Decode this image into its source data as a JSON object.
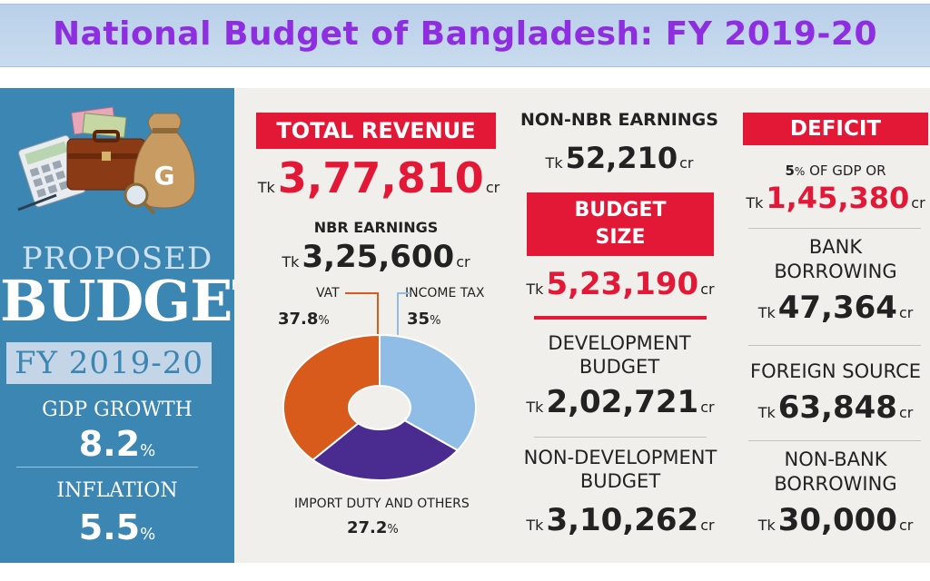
{
  "header": {
    "title": "National Budget of Bangladesh: FY 2019-20"
  },
  "left_panel": {
    "proposed": "PROPOSED",
    "budget": "BUDGET",
    "fy": "FY 2019-20",
    "gdp_growth_label": "GDP GROWTH",
    "gdp_growth_value": "8.2",
    "gdp_growth_unit": "%",
    "inflation_label": "INFLATION",
    "inflation_value": "5.5",
    "inflation_unit": "%"
  },
  "currency_prefix": "Tk",
  "currency_suffix": "cr",
  "revenue": {
    "title": "TOTAL REVENUE",
    "value": "3,77,810",
    "nbr_label": "NBR EARNINGS",
    "nbr_value": "3,25,600",
    "breakdown": [
      {
        "label": "VAT",
        "value": "37.8",
        "unit": "%",
        "share": 37.8,
        "color": "#d95b1b"
      },
      {
        "label": "INCOME TAX",
        "value": "35",
        "unit": "%",
        "share": 35,
        "color": "#8fbde6"
      },
      {
        "label": "IMPORT DUTY AND OTHERS",
        "value": "27.2",
        "unit": "%",
        "share": 27.2,
        "color": "#4a2b8f"
      }
    ]
  },
  "middle": {
    "non_nbr_label": "NON-NBR EARNINGS",
    "non_nbr_value": "52,210",
    "budget_size_line1": "BUDGET",
    "budget_size_line2": "SIZE",
    "budget_size_value": "5,23,190",
    "dev_line1": "DEVELOPMENT",
    "dev_line2": "BUDGET",
    "dev_value": "2,02,721",
    "nondev_line1": "NON-DEVELOPMENT",
    "nondev_line2": "BUDGET",
    "nondev_value": "3,10,262"
  },
  "deficit": {
    "title": "DEFICIT",
    "gdp_share": "5",
    "gdp_share_unit": "%",
    "gdp_share_text": "OF GDP OR",
    "value": "1,45,380",
    "bank_line1": "BANK",
    "bank_line2": "BORROWING",
    "bank_value": "47,364",
    "foreign_label": "FOREIGN SOURCE",
    "foreign_value": "63,848",
    "nonbank_line1": "NON-BANK",
    "nonbank_line2": "BORROWING",
    "nonbank_value": "30,000"
  }
}
